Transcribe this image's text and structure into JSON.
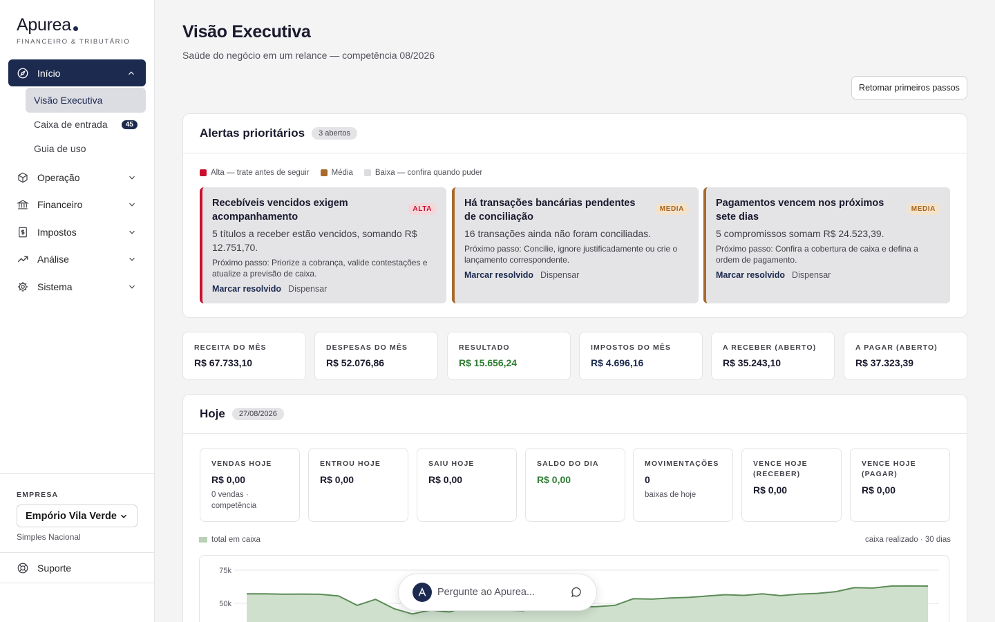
{
  "brand": {
    "name": "Apurea",
    "subtitle": "FINANCEIRO & TRIBUTÁRIO"
  },
  "sidebar": {
    "active_section": {
      "label": "Início",
      "icon": "compass-icon"
    },
    "subitems": [
      {
        "label": "Visão Executiva",
        "selected": true
      },
      {
        "label": "Caixa de entrada",
        "badge": "45"
      },
      {
        "label": "Guia de uso"
      }
    ],
    "sections": [
      {
        "label": "Operação",
        "icon": "box-icon"
      },
      {
        "label": "Financeiro",
        "icon": "bank-icon"
      },
      {
        "label": "Impostos",
        "icon": "receipt-icon"
      },
      {
        "label": "Análise",
        "icon": "trend-icon"
      },
      {
        "label": "Sistema",
        "icon": "gear-icon"
      }
    ],
    "company": {
      "caption": "EMPRESA",
      "selected": "Empório Vila Verde",
      "regime": "Simples Nacional"
    },
    "support": {
      "label": "Suporte",
      "icon": "lifebuoy-icon"
    }
  },
  "header": {
    "title": "Visão Executiva",
    "subtitle": "Saúde do negócio em um relance — competência 08/2026",
    "resume_button": "Retomar primeiros passos"
  },
  "alerts": {
    "title": "Alertas prioritários",
    "count_label": "3 abertos",
    "legend": [
      {
        "label": "Alta — trate antes de seguir",
        "color": "#c8102e"
      },
      {
        "label": "Média",
        "color": "#a86a2c"
      },
      {
        "label": "Baixa — confira quando puder",
        "color": "#dcdce0"
      }
    ],
    "items": [
      {
        "title": "Recebíveis vencidos exigem acompanhamento",
        "severity": "ALTA",
        "description": "5 títulos a receber estão vencidos, somando R$ 12.751,70.",
        "next_step": "Próximo passo: Priorize a cobrança, valide contestações e atualize a previsão de caixa.",
        "resolve": "Marcar resolvido",
        "dismiss": "Dispensar"
      },
      {
        "title": "Há transações bancárias pendentes de conciliação",
        "severity": "MEDIA",
        "description": "16 transações ainda não foram conciliadas.",
        "next_step": "Próximo passo: Concilie, ignore justificadamente ou crie o lançamento correspondente.",
        "resolve": "Marcar resolvido",
        "dismiss": "Dispensar"
      },
      {
        "title": "Pagamentos vencem nos próximos sete dias",
        "severity": "MEDIA",
        "description": "5 compromissos somam R$ 24.523,39.",
        "next_step": "Próximo passo: Confira a cobertura de caixa e defina a ordem de pagamento.",
        "resolve": "Marcar resolvido",
        "dismiss": "Dispensar"
      }
    ]
  },
  "kpis": [
    {
      "label": "RECEITA DO MÊS",
      "value": "R$ 67.733,10",
      "tone": "default"
    },
    {
      "label": "DESPESAS DO MÊS",
      "value": "R$ 52.076,86",
      "tone": "default"
    },
    {
      "label": "RESULTADO",
      "value": "R$ 15.656,24",
      "tone": "green"
    },
    {
      "label": "IMPOSTOS DO MÊS",
      "value": "R$ 4.696,16",
      "tone": "navy"
    },
    {
      "label": "A RECEBER (ABERTO)",
      "value": "R$ 35.243,10",
      "tone": "default"
    },
    {
      "label": "A PAGAR (ABERTO)",
      "value": "R$ 37.323,39",
      "tone": "default"
    }
  ],
  "today": {
    "title": "Hoje",
    "date": "27/08/2026",
    "cards": [
      {
        "label": "VENDAS HOJE",
        "value": "R$ 0,00",
        "note": "0 vendas · competência"
      },
      {
        "label": "ENTROU HOJE",
        "value": "R$ 0,00"
      },
      {
        "label": "SAIU HOJE",
        "value": "R$ 0,00"
      },
      {
        "label": "SALDO DO DIA",
        "value": "R$ 0,00",
        "tone": "green"
      },
      {
        "label": "MOVIMENTAÇÕES",
        "value": "0",
        "note": "baixas de hoje"
      },
      {
        "label": "VENCE HOJE (RECEBER)",
        "value": "R$ 0,00"
      },
      {
        "label": "VENCE HOJE (PAGAR)",
        "value": "R$ 0,00"
      }
    ]
  },
  "chart_data": {
    "type": "area",
    "title": "",
    "series": [
      {
        "name": "total em caixa",
        "color": "#5b8c57",
        "values": [
          57200,
          57200,
          56900,
          57000,
          56800,
          55500,
          48500,
          53000,
          46000,
          42000,
          45000,
          43500,
          47500,
          45000,
          45000,
          44500,
          47000,
          46200,
          47200,
          47500,
          48500,
          53500,
          53200,
          54000,
          54500,
          55500,
          56500,
          56000,
          57200,
          55800,
          57000,
          57500,
          58800,
          61800,
          61500,
          63000,
          63200,
          63000
        ]
      }
    ],
    "y_ticks": [
      "75k",
      "50k"
    ],
    "ylim": [
      35000,
      80000
    ],
    "caption_right": "caixa realizado · 30 dias",
    "grid": true
  },
  "assistant": {
    "placeholder": "Pergunte ao Apurea..."
  }
}
